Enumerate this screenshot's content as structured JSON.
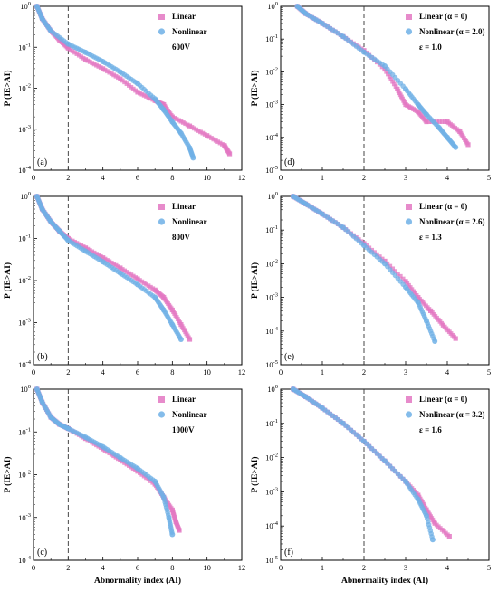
{
  "chart_data": [
    {
      "type": "scatter",
      "panel_label": "(a)",
      "yscale": "log",
      "xlim": [
        0,
        12
      ],
      "ylim": [
        0.0001,
        1
      ],
      "xticks": [
        0,
        2,
        4,
        6,
        8,
        10,
        12
      ],
      "yticks": [
        {
          "v": 1,
          "m": "0"
        },
        {
          "v": 0.1,
          "m": "-1"
        },
        {
          "v": 0.01,
          "m": "-2"
        },
        {
          "v": 0.001,
          "m": "-3"
        },
        {
          "v": 0.0001,
          "m": "-4"
        }
      ],
      "ylabel": "P (IE>AI)",
      "xlabel": "",
      "vline_x": 2,
      "legend": [
        "Linear",
        "Nonlinear",
        "600V"
      ],
      "series": [
        {
          "name": "Linear",
          "color": "#e377c2",
          "marker": "square",
          "x": [
            0.2,
            0.5,
            1,
            1.5,
            2,
            3,
            4,
            5,
            6,
            7,
            7.5,
            8,
            9,
            10,
            11,
            11.3
          ],
          "y": [
            1,
            0.5,
            0.25,
            0.15,
            0.095,
            0.05,
            0.03,
            0.017,
            0.008,
            0.005,
            0.004,
            0.002,
            0.0012,
            0.0007,
            0.0004,
            0.00025
          ]
        },
        {
          "name": "Nonlinear",
          "color": "#6fb0e6",
          "marker": "circle",
          "x": [
            0.2,
            0.5,
            1,
            2,
            3,
            4,
            5,
            6,
            7,
            7.5,
            8,
            8.5,
            9,
            9.2
          ],
          "y": [
            1,
            0.5,
            0.25,
            0.12,
            0.075,
            0.045,
            0.025,
            0.013,
            0.0055,
            0.003,
            0.0015,
            0.0008,
            0.00035,
            0.0002
          ]
        }
      ]
    },
    {
      "type": "scatter",
      "panel_label": "(d)",
      "yscale": "log",
      "xlim": [
        0,
        5
      ],
      "ylim": [
        1e-05,
        1
      ],
      "xticks": [
        0,
        1,
        2,
        3,
        4,
        5
      ],
      "yticks": [
        {
          "v": 1,
          "m": "0"
        },
        {
          "v": 0.1,
          "m": "-1"
        },
        {
          "v": 0.01,
          "m": "-2"
        },
        {
          "v": 0.001,
          "m": "-3"
        },
        {
          "v": 0.0001,
          "m": "-4"
        },
        {
          "v": 1e-05,
          "m": "-5"
        }
      ],
      "ylabel": "P (IE>AI)",
      "xlabel": "",
      "vline_x": 2,
      "legend": [
        "Linear (α = 0)",
        "Nonlinear (α = 2.0)",
        "ε = 1.0"
      ],
      "series": [
        {
          "name": "Linear (α = 0)",
          "color": "#e377c2",
          "marker": "square",
          "x": [
            0.4,
            0.6,
            1,
            1.5,
            2,
            2.5,
            2.8,
            3,
            3.3,
            3.5,
            4,
            4.3,
            4.5
          ],
          "y": [
            1,
            0.6,
            0.3,
            0.12,
            0.045,
            0.012,
            0.003,
            0.001,
            0.0006,
            0.0003,
            0.0003,
            0.00015,
            6e-05
          ]
        },
        {
          "name": "Nonlinear (α = 2.0)",
          "color": "#6fb0e6",
          "marker": "circle",
          "x": [
            0.4,
            0.6,
            1,
            1.5,
            2,
            2.5,
            3,
            3.3,
            3.5,
            3.8,
            4,
            4.2
          ],
          "y": [
            1,
            0.6,
            0.3,
            0.12,
            0.04,
            0.015,
            0.003,
            0.001,
            0.0005,
            0.0002,
            0.0001,
            5e-05
          ]
        }
      ]
    },
    {
      "type": "scatter",
      "panel_label": "(b)",
      "yscale": "log",
      "xlim": [
        0,
        12
      ],
      "ylim": [
        0.0001,
        1
      ],
      "xticks": [
        0,
        2,
        4,
        6,
        8,
        10,
        12
      ],
      "yticks": [
        {
          "v": 1,
          "m": "0"
        },
        {
          "v": 0.1,
          "m": "-1"
        },
        {
          "v": 0.01,
          "m": "-2"
        },
        {
          "v": 0.001,
          "m": "-3"
        },
        {
          "v": 0.0001,
          "m": "-4"
        }
      ],
      "ylabel": "P (IE>AI)",
      "xlabel": "",
      "vline_x": 2,
      "legend": [
        "Linear",
        "Nonlinear",
        "800V"
      ],
      "series": [
        {
          "name": "Linear",
          "color": "#e377c2",
          "marker": "square",
          "x": [
            0.2,
            0.5,
            1,
            1.5,
            2,
            3,
            4,
            5,
            6,
            7,
            7.5,
            8,
            8.5,
            9
          ],
          "y": [
            1,
            0.5,
            0.25,
            0.15,
            0.1,
            0.06,
            0.035,
            0.02,
            0.011,
            0.006,
            0.004,
            0.002,
            0.0009,
            0.0004
          ]
        },
        {
          "name": "Nonlinear",
          "color": "#6fb0e6",
          "marker": "circle",
          "x": [
            0.2,
            0.5,
            1,
            1.5,
            2,
            3,
            4,
            5,
            6,
            7,
            7.5,
            8,
            8.5
          ],
          "y": [
            1,
            0.5,
            0.25,
            0.15,
            0.09,
            0.05,
            0.028,
            0.015,
            0.008,
            0.004,
            0.002,
            0.0009,
            0.0004
          ]
        }
      ]
    },
    {
      "type": "scatter",
      "panel_label": "(e)",
      "yscale": "log",
      "xlim": [
        0,
        5
      ],
      "ylim": [
        1e-05,
        1
      ],
      "xticks": [
        0,
        1,
        2,
        3,
        4,
        5
      ],
      "yticks": [
        {
          "v": 1,
          "m": "0"
        },
        {
          "v": 0.1,
          "m": "-1"
        },
        {
          "v": 0.01,
          "m": "-2"
        },
        {
          "v": 0.001,
          "m": "-3"
        },
        {
          "v": 0.0001,
          "m": "-4"
        },
        {
          "v": 1e-05,
          "m": "-5"
        }
      ],
      "ylabel": "P (IE>AI)",
      "xlabel": "",
      "vline_x": 2,
      "legend": [
        "Linear (α = 0)",
        "Nonlinear (α = 2.6)",
        "ε = 1.3"
      ],
      "series": [
        {
          "name": "Linear (α = 0)",
          "color": "#e377c2",
          "marker": "square",
          "x": [
            0.3,
            0.6,
            1,
            1.5,
            2,
            2.5,
            3,
            3.3,
            3.6,
            3.9,
            4.2
          ],
          "y": [
            1,
            0.6,
            0.3,
            0.12,
            0.04,
            0.012,
            0.003,
            0.001,
            0.0004,
            0.00015,
            6e-05
          ]
        },
        {
          "name": "Nonlinear (α = 2.6)",
          "color": "#6fb0e6",
          "marker": "circle",
          "x": [
            0.3,
            0.6,
            1,
            1.5,
            2,
            2.5,
            3,
            3.3,
            3.5,
            3.7
          ],
          "y": [
            1,
            0.6,
            0.3,
            0.12,
            0.035,
            0.01,
            0.002,
            0.0007,
            0.0002,
            5e-05
          ]
        }
      ]
    },
    {
      "type": "scatter",
      "panel_label": "(c)",
      "yscale": "log",
      "xlim": [
        0,
        12
      ],
      "ylim": [
        0.0001,
        1
      ],
      "xticks": [
        0,
        2,
        4,
        6,
        8,
        10,
        12
      ],
      "yticks": [
        {
          "v": 1,
          "m": "0"
        },
        {
          "v": 0.1,
          "m": "-1"
        },
        {
          "v": 0.01,
          "m": "-2"
        },
        {
          "v": 0.001,
          "m": "-3"
        },
        {
          "v": 0.0001,
          "m": "-4"
        }
      ],
      "ylabel": "P (IE>AI)",
      "xlabel": "Abnormality index (AI)",
      "vline_x": 2,
      "legend": [
        "Linear",
        "Nonlinear",
        "1000V"
      ],
      "series": [
        {
          "name": "Linear",
          "color": "#e377c2",
          "marker": "square",
          "x": [
            0.2,
            0.5,
            1,
            1.5,
            2,
            3,
            4,
            5,
            6,
            7,
            7.5,
            8,
            8.2,
            8.4
          ],
          "y": [
            1,
            0.5,
            0.22,
            0.15,
            0.12,
            0.07,
            0.04,
            0.022,
            0.012,
            0.006,
            0.003,
            0.0015,
            0.0008,
            0.0005
          ]
        },
        {
          "name": "Nonlinear",
          "color": "#6fb0e6",
          "marker": "circle",
          "x": [
            0.2,
            0.5,
            1,
            1.5,
            2,
            3,
            4,
            5,
            6,
            7,
            7.5,
            7.8,
            8
          ],
          "y": [
            1,
            0.5,
            0.22,
            0.15,
            0.12,
            0.075,
            0.045,
            0.025,
            0.014,
            0.007,
            0.003,
            0.001,
            0.0004
          ]
        }
      ]
    },
    {
      "type": "scatter",
      "panel_label": "(f)",
      "yscale": "log",
      "xlim": [
        0,
        5
      ],
      "ylim": [
        1e-05,
        1
      ],
      "xticks": [
        0,
        1,
        2,
        3,
        4,
        5
      ],
      "yticks": [
        {
          "v": 1,
          "m": "0"
        },
        {
          "v": 0.1,
          "m": "-1"
        },
        {
          "v": 0.01,
          "m": "-2"
        },
        {
          "v": 0.001,
          "m": "-3"
        },
        {
          "v": 0.0001,
          "m": "-4"
        },
        {
          "v": 1e-05,
          "m": "-5"
        }
      ],
      "ylabel": "P (IE>AI)",
      "xlabel": "Abnormality index (AI)",
      "vline_x": 2,
      "legend": [
        "Linear (α = 0)",
        "Nonlinear (α = 3.2)",
        "ε = 1.6"
      ],
      "series": [
        {
          "name": "Linear (α = 0)",
          "color": "#e377c2",
          "marker": "square",
          "x": [
            0.3,
            0.6,
            1,
            1.5,
            2,
            2.5,
            3,
            3.3,
            3.5,
            3.7,
            4.05
          ],
          "y": [
            1,
            0.6,
            0.28,
            0.1,
            0.03,
            0.008,
            0.002,
            0.0008,
            0.0003,
            0.00012,
            5e-05
          ]
        },
        {
          "name": "Nonlinear (α = 3.2)",
          "color": "#6fb0e6",
          "marker": "circle",
          "x": [
            0.3,
            0.6,
            1,
            1.5,
            2,
            2.5,
            3,
            3.3,
            3.5,
            3.65
          ],
          "y": [
            1,
            0.6,
            0.28,
            0.1,
            0.03,
            0.008,
            0.002,
            0.0006,
            0.0002,
            4e-05
          ]
        }
      ]
    }
  ]
}
